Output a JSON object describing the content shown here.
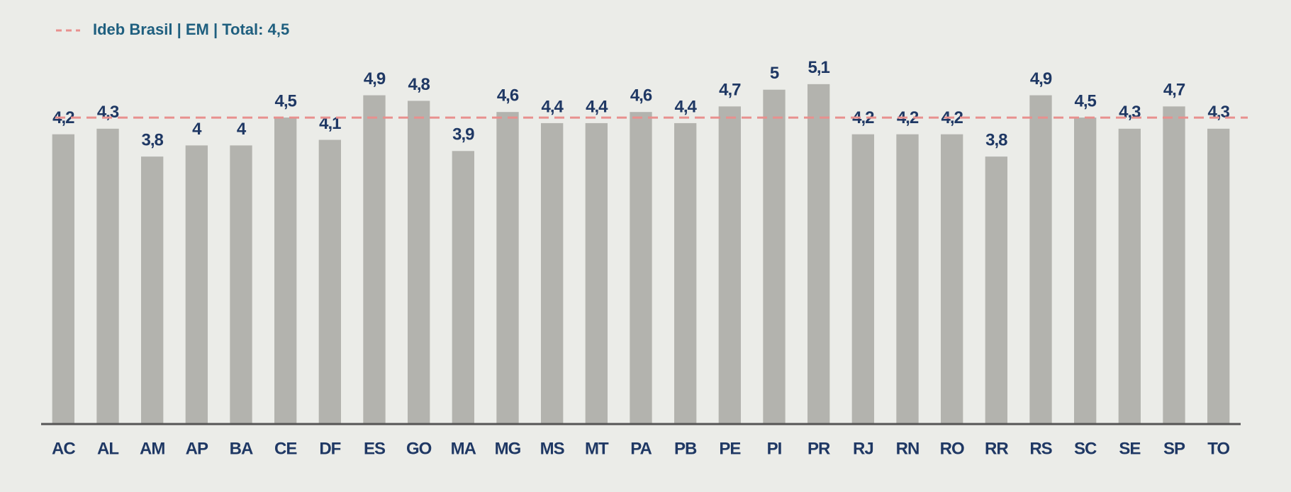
{
  "chart_data": {
    "type": "bar",
    "categories": [
      "AC",
      "AL",
      "AM",
      "AP",
      "BA",
      "CE",
      "DF",
      "ES",
      "GO",
      "MA",
      "MG",
      "MS",
      "MT",
      "PA",
      "PB",
      "PE",
      "PI",
      "PR",
      "RJ",
      "RN",
      "RO",
      "RR",
      "RS",
      "SC",
      "SE",
      "SP",
      "TO"
    ],
    "values": [
      4.2,
      4.3,
      3.8,
      4,
      4,
      4.5,
      4.1,
      4.9,
      4.8,
      3.9,
      4.6,
      4.4,
      4.4,
      4.6,
      4.4,
      4.7,
      5,
      5.1,
      4.2,
      4.2,
      4.2,
      3.8,
      4.9,
      4.5,
      4.3,
      4.7,
      4.3
    ],
    "value_labels": [
      "4,2",
      "4,3",
      "3,8",
      "4",
      "4",
      "4,5",
      "4,1",
      "4,9",
      "4,8",
      "3,9",
      "4,6",
      "4,4",
      "4,4",
      "4,6",
      "4,4",
      "4,7",
      "5",
      "5,1",
      "4,2",
      "4,2",
      "4,2",
      "3,8",
      "4,9",
      "4,5",
      "4,3",
      "4,7",
      "4,3"
    ],
    "color": "#b3b3ae",
    "ylim": [
      -1,
      6
    ],
    "reference_line": {
      "label": "Ideb Brasil | EM | Total: 4,5",
      "value": 4.5,
      "color": "#e8908e"
    }
  }
}
